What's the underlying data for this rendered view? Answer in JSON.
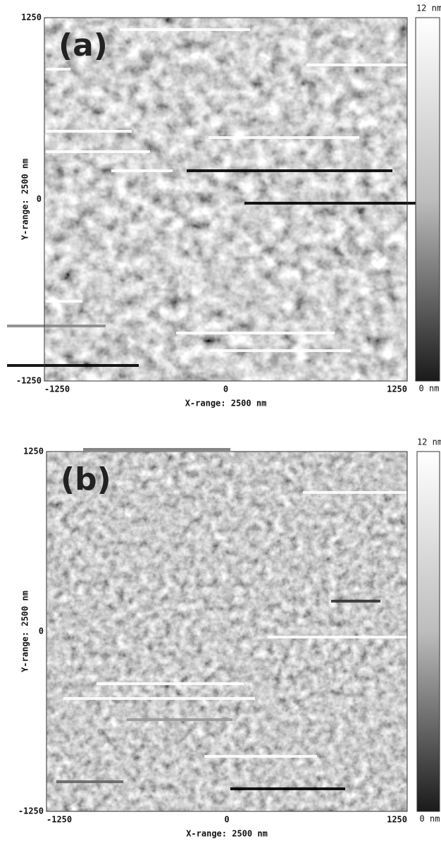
{
  "panels": [
    {
      "label": "(a)",
      "y_axis": {
        "title": "Y-range: 2500 nm",
        "ticks": [
          "1250",
          "0",
          "-1250"
        ]
      },
      "x_axis": {
        "title": "X-range: 2500 nm",
        "ticks": [
          "-1250",
          "0",
          "1250"
        ]
      },
      "colorbar": {
        "max": "12 nm",
        "min": "0 nm"
      }
    },
    {
      "label": "(b)",
      "y_axis": {
        "title": "Y-range: 2500 nm",
        "ticks": [
          "1250",
          "0",
          "-1250"
        ]
      },
      "x_axis": {
        "title": "X-range: 2500 nm",
        "ticks": [
          "-1250",
          "0",
          "1250"
        ]
      },
      "colorbar": {
        "max": "12 nm",
        "min": "0 nm"
      }
    }
  ]
}
